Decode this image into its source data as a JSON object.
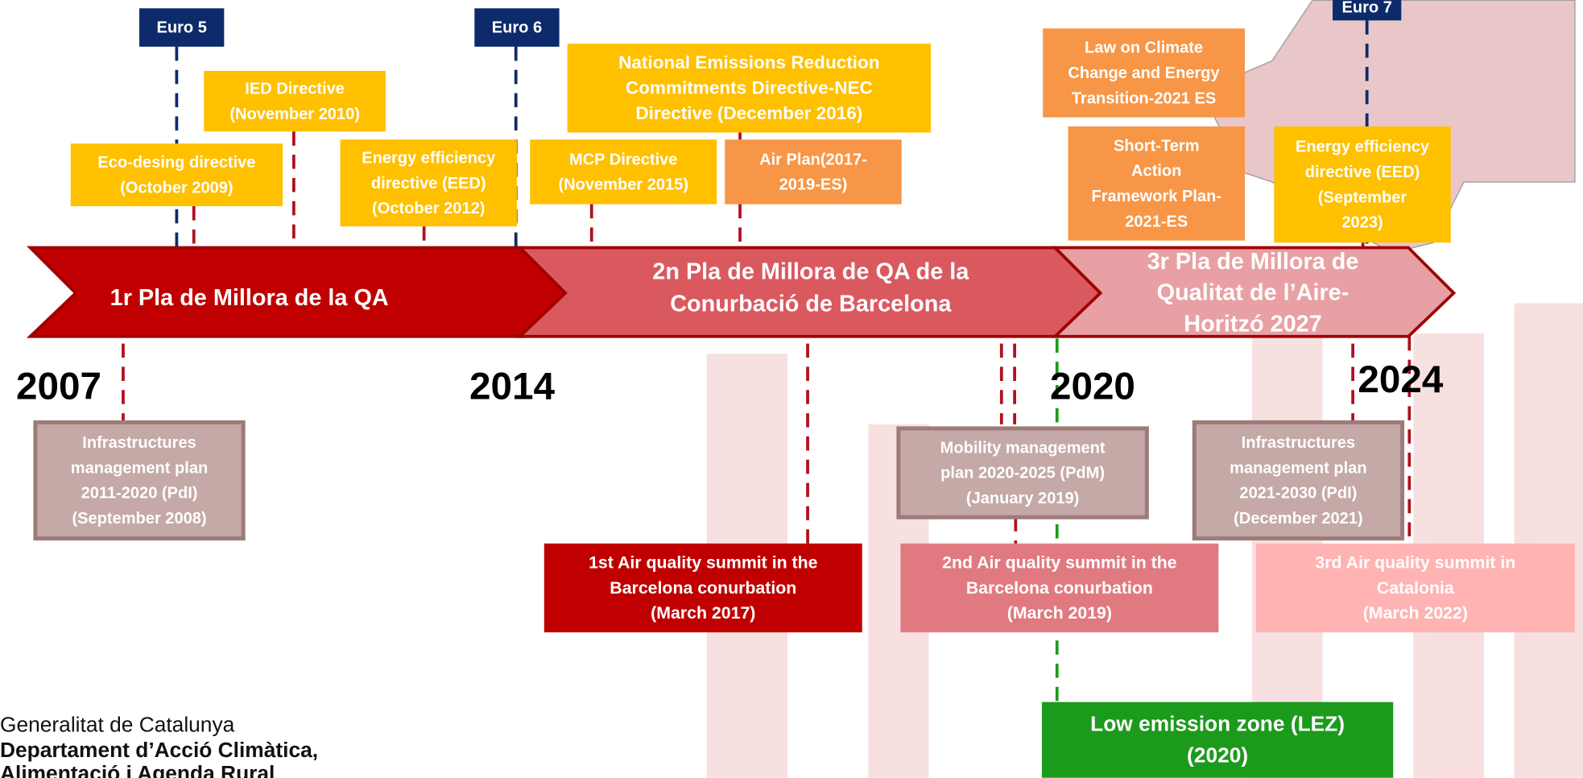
{
  "euro_standards": [
    "Euro 5",
    "Euro 6",
    "Euro 7"
  ],
  "plans": [
    {
      "lines": [
        "1r Pla de Millora de la QA"
      ]
    },
    {
      "lines": [
        "2n Pla de Millora de QA  de la",
        "Conurbació de Barcelona"
      ]
    },
    {
      "lines": [
        "3r Pla de Millora de",
        "Qualitat de l’Aire-",
        "Horitzó 2027"
      ]
    }
  ],
  "years": [
    "2007",
    "2014",
    "2020",
    "2024"
  ],
  "boxes": [
    {
      "lines": [
        "Eco-desing directive",
        "(October 2009)"
      ]
    },
    {
      "lines": [
        "IED Directive",
        "(November 2010)"
      ]
    },
    {
      "lines": [
        "Energy efficiency",
        "directive (EED)",
        "(October 2012)"
      ]
    },
    {
      "lines": [
        "National Emissions Reduction",
        "Commitments Directive-NEC",
        "Directive (December 2016)"
      ]
    },
    {
      "lines": [
        "MCP Directive",
        "(November 2015)"
      ]
    },
    {
      "lines": [
        "Air Plan(2017-",
        "2019-ES)"
      ]
    },
    {
      "lines": [
        "Law on Climate",
        "Change and Energy",
        "Transition-2021 ES"
      ]
    },
    {
      "lines": [
        "Short-Term",
        "Action",
        "Framework Plan-",
        "2021-ES"
      ]
    },
    {
      "lines": [
        "Energy efficiency",
        "directive (EED)",
        "(September",
        "2023)"
      ]
    },
    {
      "lines": [
        "Infrastructures",
        "management plan",
        "2011-2020 (PdI)",
        "(September 2008)"
      ]
    },
    {
      "lines": [
        "1st Air quality summit  in the",
        "Barcelona conurbation",
        "(March 2017)"
      ]
    },
    {
      "lines": [
        "Mobility management",
        "plan 2020-2025 (PdM)",
        "(January 2019)"
      ]
    },
    {
      "lines": [
        "2nd Air quality summit  in the",
        "Barcelona conurbation",
        "(March 2019)"
      ]
    },
    {
      "lines": [
        "Low emission zone (LEZ)",
        "(2020)"
      ]
    },
    {
      "lines": [
        "Infrastructures",
        "management plan",
        "2021-2030 (PdI)",
        "(December 2021)"
      ]
    },
    {
      "lines": [
        "3rd Air quality summit  in",
        "Catalonia",
        "(March 2022)"
      ]
    }
  ],
  "footer": {
    "lines": [
      "Generalitat de Catalunya",
      "Departament d’Acció Climàtica,",
      "Alimentació i Agenda Rural"
    ]
  }
}
